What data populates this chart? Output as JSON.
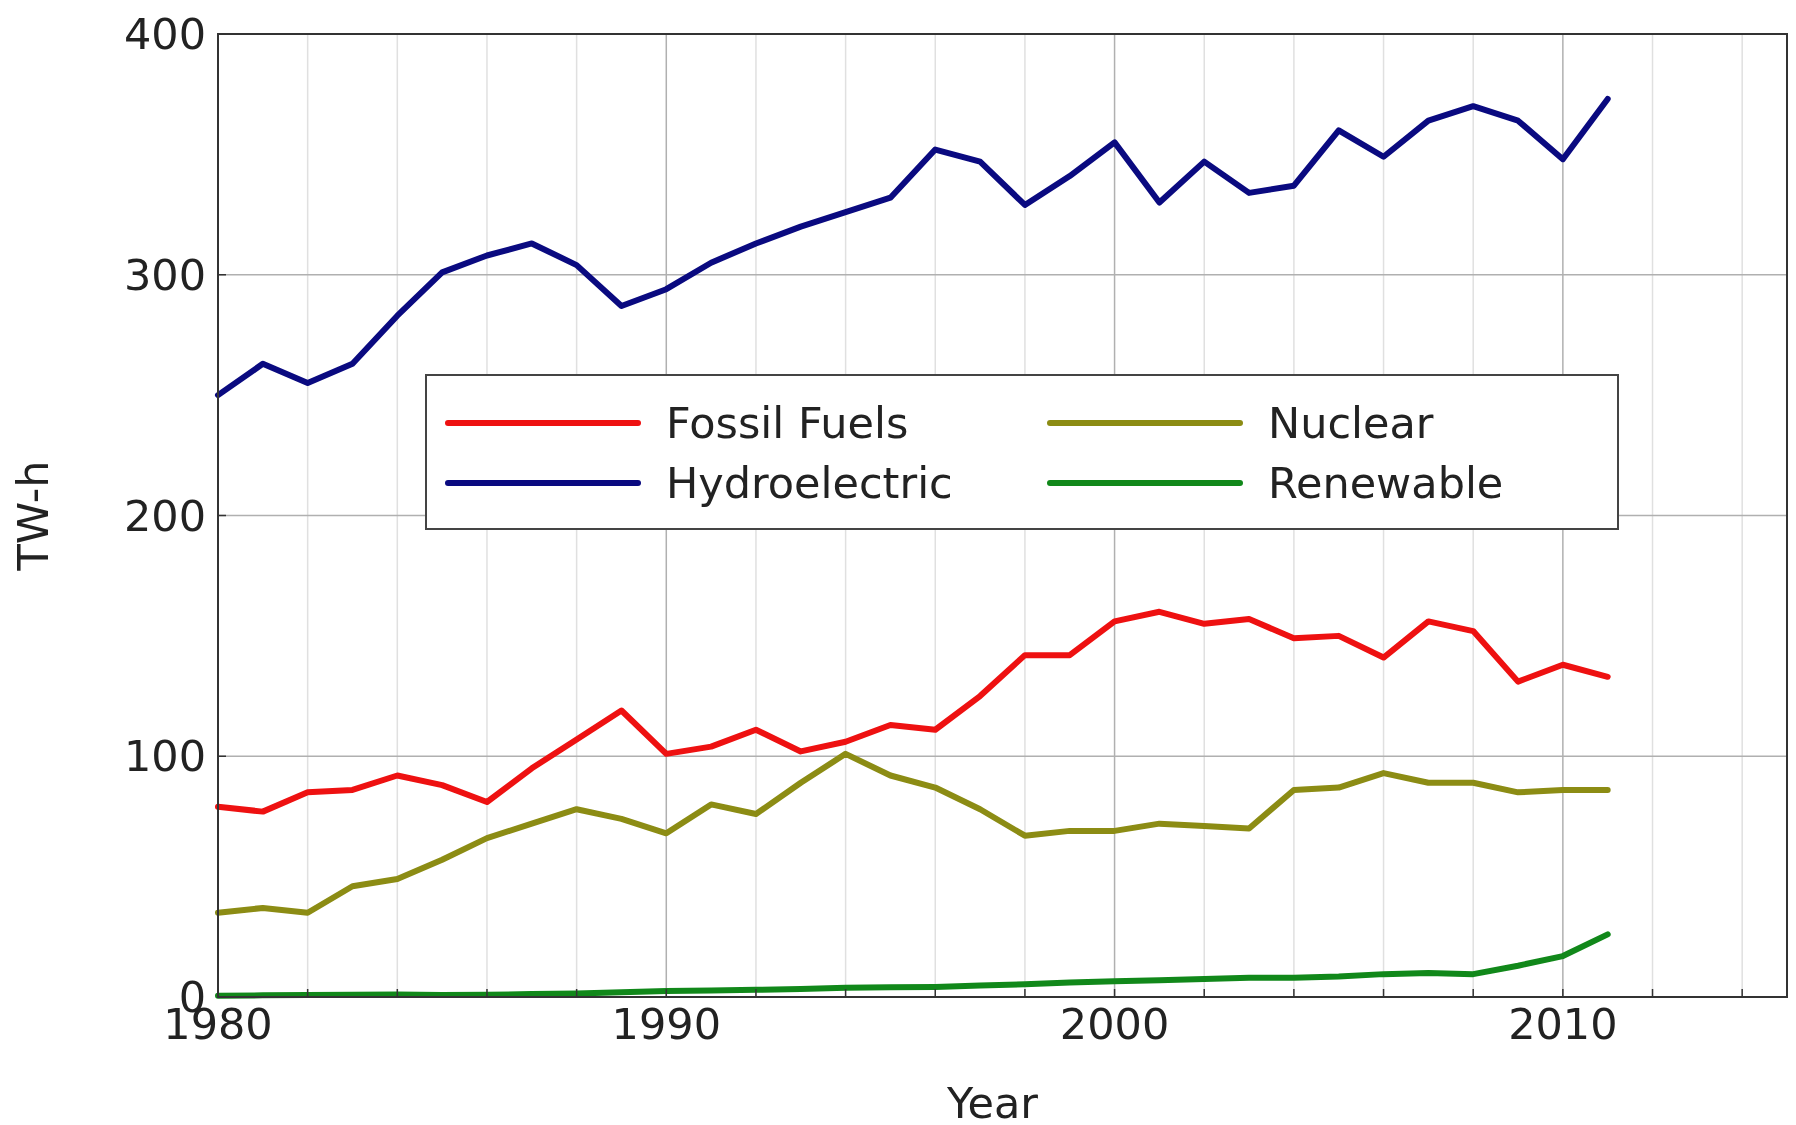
{
  "chart_data": {
    "type": "line",
    "xlabel": "Year",
    "ylabel": "TW-h",
    "x": [
      1980,
      1981,
      1982,
      1983,
      1984,
      1985,
      1986,
      1987,
      1988,
      1989,
      1990,
      1991,
      1992,
      1993,
      1994,
      1995,
      1996,
      1997,
      1998,
      1999,
      2000,
      2001,
      2002,
      2003,
      2004,
      2005,
      2006,
      2007,
      2008,
      2009,
      2010,
      2011
    ],
    "series": [
      {
        "name": "Fossil Fuels",
        "color": "#ee1111",
        "values": [
          79,
          77,
          85,
          86,
          92,
          88,
          81,
          95,
          107,
          119,
          101,
          104,
          111,
          102,
          106,
          113,
          111,
          125,
          142,
          142,
          156,
          160,
          155,
          157,
          149,
          150,
          141,
          156,
          152,
          131,
          138,
          133
        ]
      },
      {
        "name": "Hydroelectric",
        "color": "#0a0a80",
        "values": [
          250,
          263,
          255,
          263,
          283,
          301,
          308,
          313,
          304,
          287,
          294,
          305,
          313,
          320,
          326,
          332,
          352,
          347,
          329,
          341,
          355,
          330,
          347,
          334,
          337,
          360,
          349,
          364,
          370,
          364,
          348,
          373
        ]
      },
      {
        "name": "Nuclear",
        "color": "#8c8c14",
        "values": [
          35,
          37,
          35,
          46,
          49,
          57,
          66,
          72,
          78,
          74,
          68,
          80,
          76,
          89,
          101,
          92,
          87,
          78,
          67,
          69,
          69,
          72,
          71,
          70,
          86,
          87,
          93,
          89,
          89,
          85,
          86,
          86
        ]
      },
      {
        "name": "Renewable",
        "color": "#11881a",
        "values": [
          0.5,
          0.7,
          0.8,
          0.9,
          1,
          0.8,
          0.9,
          1.2,
          1.5,
          2,
          2.5,
          2.7,
          3,
          3.3,
          3.8,
          4,
          4.2,
          4.8,
          5.3,
          6,
          6.5,
          7,
          7.5,
          8,
          8,
          8.5,
          9.5,
          10,
          9.5,
          13,
          17,
          26
        ]
      }
    ],
    "xlim": [
      1980,
      2015
    ],
    "xticks": [
      1980,
      {
        "value": 1982,
        "label": null
      },
      {
        "value": 1984,
        "label": null
      },
      {
        "value": 1986,
        "label": null
      },
      {
        "value": 1988,
        "label": null
      },
      1990,
      {
        "value": 1992,
        "label": null
      },
      {
        "value": 1994,
        "label": null
      },
      {
        "value": 1996,
        "label": null
      },
      {
        "value": 1998,
        "label": null
      },
      2000,
      {
        "value": 2002,
        "label": null
      },
      {
        "value": 2004,
        "label": null
      },
      {
        "value": 2006,
        "label": null
      },
      {
        "value": 2008,
        "label": null
      },
      2010,
      {
        "value": 2012,
        "label": null
      },
      {
        "value": 2014,
        "label": null
      }
    ],
    "ylim": [
      0,
      400
    ],
    "yticks": [
      0,
      100,
      200,
      300,
      400
    ],
    "grid": true,
    "legend": "center",
    "line_style": "solid",
    "marker": "none"
  }
}
